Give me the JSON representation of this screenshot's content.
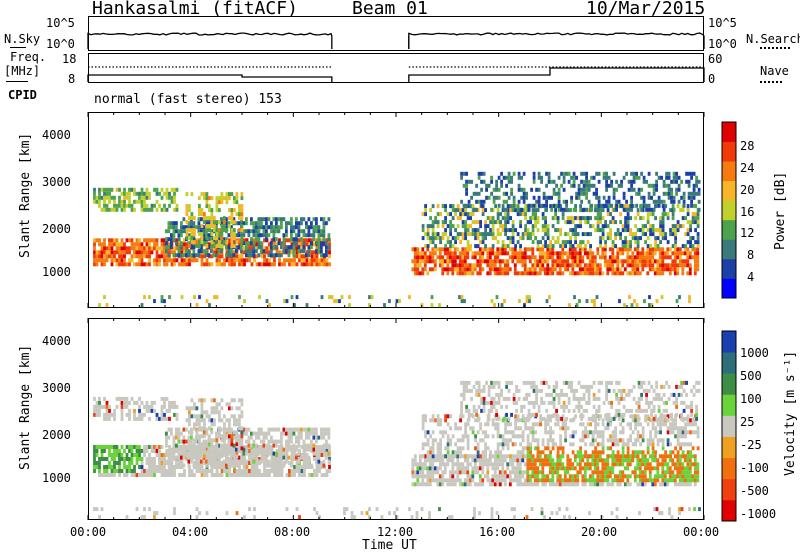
{
  "header": {
    "station": "Hankasalmi (fitACF)",
    "beam": "Beam 01",
    "date": "10/Mar/2015"
  },
  "top_panels": {
    "nsky_label": "N.Sky",
    "nsky_ticks": [
      "10^5",
      "10^0"
    ],
    "nsearch_label": "N.Search",
    "nsearch_ticks": [
      "10^5",
      "10^0"
    ],
    "freq_label": "Freq.",
    "freq_unit": "[MHz]",
    "freq_ticks": [
      "18",
      "8"
    ],
    "nave_label": "Nave",
    "nave_ticks": [
      "60",
      "0"
    ],
    "cpid_label": "CPID",
    "cpid_value": "normal (fast stereo) 153"
  },
  "colors": {
    "power_scale": [
      "#0000ff",
      "#1c3fa8",
      "#3a7a7a",
      "#4da24d",
      "#c2d02b",
      "#f7b52a",
      "#f57a10",
      "#f03a0a",
      "#e00000"
    ],
    "velocity_scale": [
      "#1a3fb0",
      "#2c6e7a",
      "#3d8e45",
      "#6ad33a",
      "#c8c8c0",
      "#f0a020",
      "#f07010",
      "#f04010",
      "#e00000"
    ]
  },
  "chart_data": [
    {
      "type": "heatmap",
      "title": "Power",
      "ylabel": "Slant Range [km]",
      "y_ticks": [
        "4000",
        "3000",
        "2000",
        "1000"
      ],
      "ylim": [
        180,
        4500
      ],
      "xlim": [
        "00:00",
        "24:00"
      ],
      "colorbar_label": "Power [dB]",
      "colorbar_ticks": [
        "28",
        "24",
        "20",
        "16",
        "12",
        "8",
        "4"
      ],
      "colorbar_range": [
        0,
        32
      ],
      "data_gap_ut": [
        "09:30",
        "12:30"
      ]
    },
    {
      "type": "heatmap",
      "title": "Velocity",
      "ylabel": "Slant Range [km]",
      "y_ticks": [
        "4000",
        "3000",
        "2000",
        "1000"
      ],
      "ylim": [
        180,
        4500
      ],
      "xlim": [
        "00:00",
        "24:00"
      ],
      "colorbar_label": "Velocity [m s⁻¹]",
      "colorbar_ticks": [
        "1000",
        "500",
        "100",
        "25",
        "-25",
        "-100",
        "-500",
        "-1000"
      ],
      "data_gap_ut": [
        "09:30",
        "12:30"
      ]
    }
  ],
  "x_axis": {
    "ticks": [
      "00:00",
      "04:00",
      "08:00",
      "12:00",
      "16:00",
      "20:00",
      "00:00"
    ],
    "label": "Time UT"
  }
}
